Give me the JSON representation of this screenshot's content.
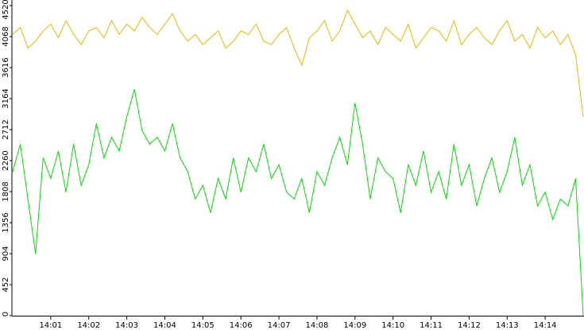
{
  "chart_data": {
    "type": "line",
    "x": [
      0,
      0.2,
      0.4,
      0.6,
      0.8,
      1,
      1.2,
      1.4,
      1.6,
      1.8,
      2,
      2.2,
      2.4,
      2.6,
      2.8,
      3,
      3.2,
      3.4,
      3.6,
      3.8,
      4,
      4.2,
      4.4,
      4.6,
      4.8,
      5,
      5.2,
      5.4,
      5.6,
      5.8,
      6,
      6.2,
      6.4,
      6.6,
      6.8,
      7,
      7.2,
      7.4,
      7.6,
      7.8,
      8,
      8.2,
      8.4,
      8.6,
      8.8,
      9,
      9.2,
      9.4,
      9.6,
      9.8,
      10,
      10.2,
      10.4,
      10.6,
      10.8,
      11,
      11.2,
      11.4,
      11.6,
      11.8,
      12,
      12.2,
      12.4,
      12.6,
      12.8,
      13,
      13.2,
      13.4,
      13.6,
      13.8,
      14,
      14.2,
      14.4,
      14.6,
      14.8,
      15
    ],
    "series": [
      {
        "color": "#f2b600",
        "values": [
          4100,
          4200,
          3900,
          4000,
          4150,
          4250,
          4050,
          4300,
          4100,
          3950,
          4150,
          4200,
          4050,
          4300,
          4100,
          4250,
          4150,
          4350,
          4200,
          4100,
          4250,
          4400,
          4150,
          4000,
          4100,
          3950,
          4050,
          4150,
          3900,
          4000,
          4150,
          4100,
          4250,
          4000,
          3950,
          4100,
          4200,
          3900,
          3650,
          4050,
          4150,
          4300,
          4000,
          4150,
          4450,
          4250,
          4050,
          4150,
          3950,
          4200,
          4100,
          4000,
          4250,
          3900,
          4050,
          4200,
          4150,
          4000,
          4300,
          3950,
          4100,
          4200,
          4050,
          3950,
          4150,
          4300,
          4000,
          4100,
          3900,
          4200,
          4050,
          4150,
          3950,
          4100,
          3800,
          2900
        ]
      },
      {
        "color": "#00e000",
        "values": [
          2100,
          2500,
          1700,
          900,
          2300,
          2000,
          2400,
          1800,
          2500,
          1900,
          2200,
          2800,
          2300,
          2600,
          2400,
          2900,
          3300,
          2700,
          2500,
          2600,
          2400,
          2800,
          2300,
          2100,
          1700,
          1900,
          1500,
          2000,
          1700,
          2300,
          1800,
          2300,
          2100,
          2500,
          2000,
          2200,
          1800,
          1700,
          2000,
          1500,
          2100,
          1900,
          2300,
          2600,
          2200,
          3100,
          2500,
          1700,
          2300,
          2100,
          2000,
          1500,
          2200,
          1900,
          2400,
          1800,
          2100,
          1700,
          2500,
          1900,
          2200,
          1600,
          2000,
          2300,
          1800,
          2100,
          2600,
          1900,
          2200,
          1600,
          1800,
          1400,
          1700,
          1600,
          2000,
          0
        ]
      }
    ],
    "xlim": [
      0,
      15
    ],
    "xticks": [
      {
        "value": 1,
        "label": "14:01"
      },
      {
        "value": 2,
        "label": "14:02"
      },
      {
        "value": 3,
        "label": "14:03"
      },
      {
        "value": 4,
        "label": "14:04"
      },
      {
        "value": 5,
        "label": "14:05"
      },
      {
        "value": 6,
        "label": "14:06"
      },
      {
        "value": 7,
        "label": "14:07"
      },
      {
        "value": 8,
        "label": "14:08"
      },
      {
        "value": 9,
        "label": "14:09"
      },
      {
        "value": 10,
        "label": "14:10"
      },
      {
        "value": 11,
        "label": "14:11"
      },
      {
        "value": 12,
        "label": "14:12"
      },
      {
        "value": 13,
        "label": "14:13"
      },
      {
        "value": 14,
        "label": "14:14"
      }
    ],
    "ylim": [
      0,
      4520
    ],
    "yticks": [
      0,
      452,
      904,
      1356,
      1808,
      2260,
      2712,
      3164,
      3616,
      4068,
      4520
    ],
    "grid": false
  }
}
